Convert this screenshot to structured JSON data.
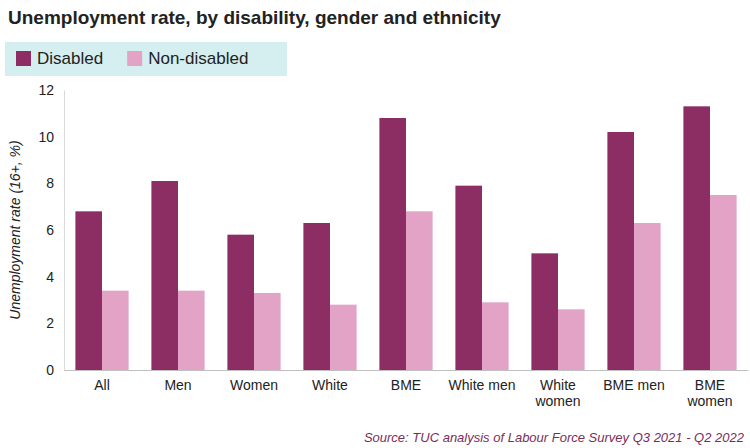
{
  "chart_data": {
    "type": "bar",
    "title": "Unemployment rate, by disability, gender and ethnicity",
    "y_label": "Unemployment rate (16+, %)",
    "source": "Source: TUC analysis of Labour Force Survey Q3 2021 - Q2 2022",
    "categories": [
      "All",
      "Men",
      "Women",
      "White",
      "BME",
      "White men",
      "White women",
      "BME men",
      "BME women"
    ],
    "series": [
      {
        "name": "Disabled",
        "color": "#8c2d63",
        "values": [
          6.8,
          8.1,
          5.8,
          6.3,
          10.8,
          7.9,
          5.0,
          10.2,
          11.3
        ]
      },
      {
        "name": "Non-disabled",
        "color": "#e2a3c7",
        "values": [
          3.4,
          3.4,
          3.3,
          2.8,
          6.8,
          2.9,
          2.6,
          6.3,
          7.5
        ]
      }
    ],
    "ylim": [
      0,
      12
    ],
    "yticks": [
      0,
      2,
      4,
      6,
      8,
      10,
      12
    ],
    "grid": false,
    "legend": "top-left"
  }
}
